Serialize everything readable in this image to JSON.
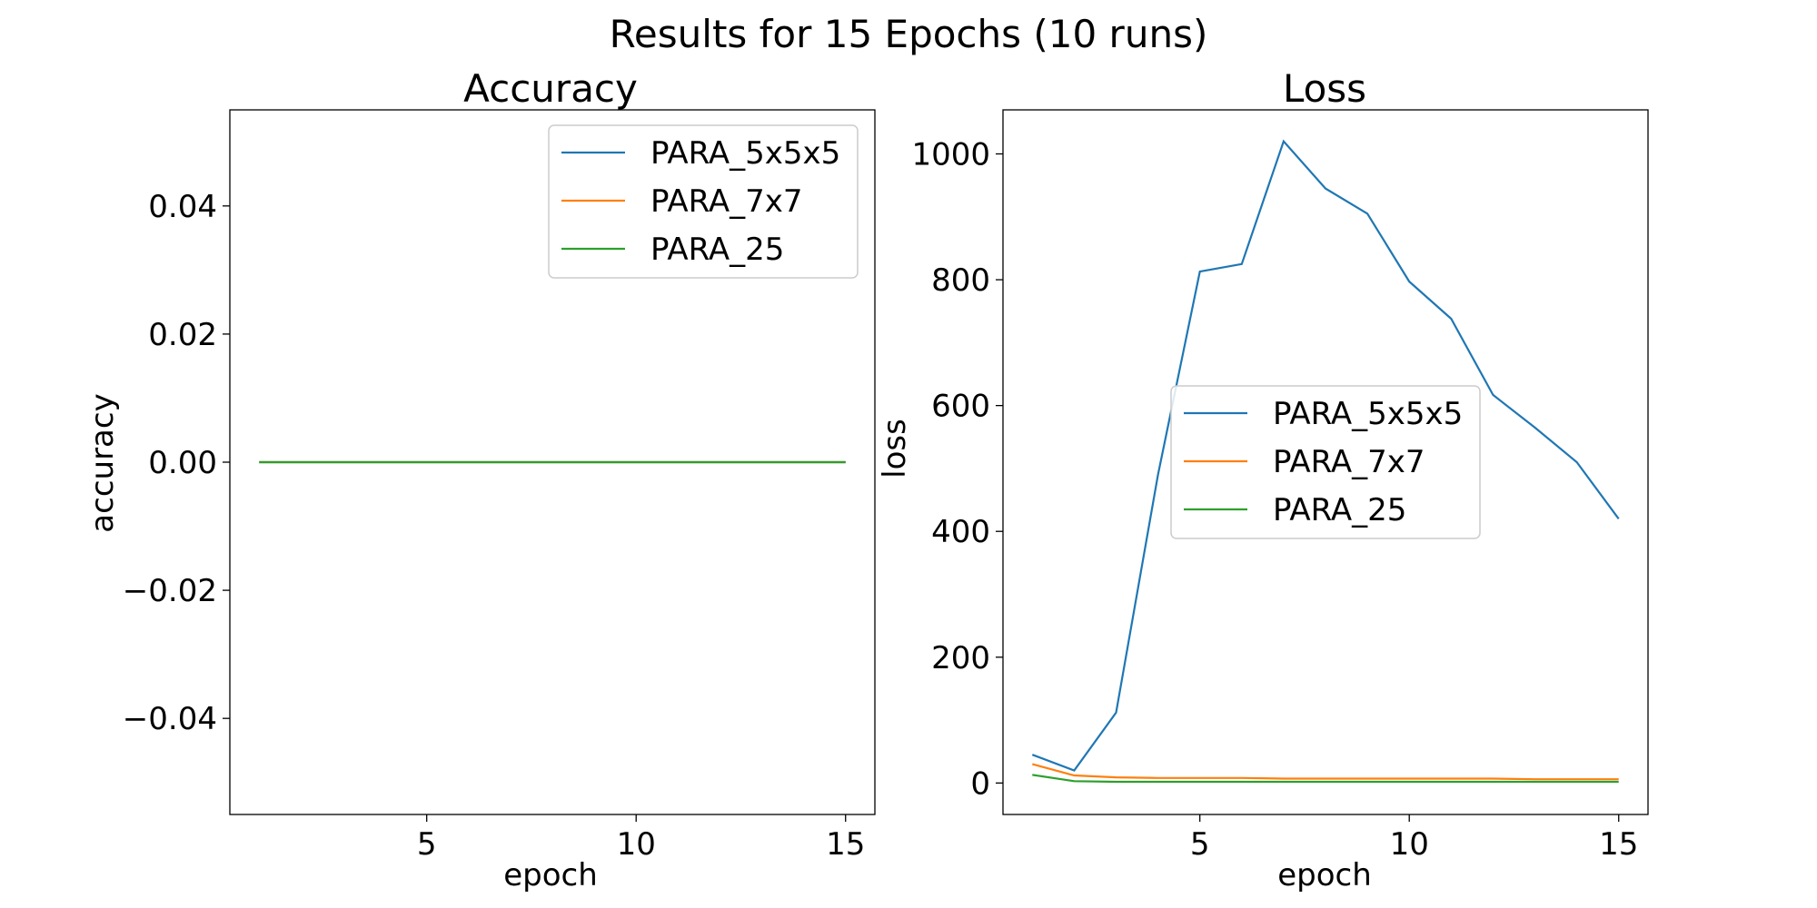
{
  "figure": {
    "title": "Results for 15 Epochs (10 runs)"
  },
  "chart_data": [
    {
      "type": "line",
      "title": "Accuracy",
      "xlabel": "epoch",
      "ylabel": "accuracy",
      "xlim": [
        0.3,
        15.7
      ],
      "ylim": [
        -0.055,
        0.055
      ],
      "xticks": [
        5,
        10,
        15
      ],
      "yticks": [
        -0.04,
        -0.02,
        0.0,
        0.02,
        0.04
      ],
      "yticklabels": [
        "−0.04",
        "−0.02",
        "0.00",
        "0.02",
        "0.04"
      ],
      "grid": false,
      "legend_position": "upper right",
      "x": [
        1,
        2,
        3,
        4,
        5,
        6,
        7,
        8,
        9,
        10,
        11,
        12,
        13,
        14,
        15
      ],
      "series": [
        {
          "name": "PARA_5x5x5",
          "color": "#1f77b4",
          "values": [
            0,
            0,
            0,
            0,
            0,
            0,
            0,
            0,
            0,
            0,
            0,
            0,
            0,
            0,
            0
          ]
        },
        {
          "name": "PARA_7x7",
          "color": "#ff7f0e",
          "values": [
            0,
            0,
            0,
            0,
            0,
            0,
            0,
            0,
            0,
            0,
            0,
            0,
            0,
            0,
            0
          ]
        },
        {
          "name": "PARA_25",
          "color": "#2ca02c",
          "values": [
            0,
            0,
            0,
            0,
            0,
            0,
            0,
            0,
            0,
            0,
            0,
            0,
            0,
            0,
            0
          ]
        }
      ]
    },
    {
      "type": "line",
      "title": "Loss",
      "xlabel": "epoch",
      "ylabel": "loss",
      "xlim": [
        0.3,
        15.7
      ],
      "ylim": [
        -50,
        1070
      ],
      "xticks": [
        5,
        10,
        15
      ],
      "yticks": [
        0,
        200,
        400,
        600,
        800,
        1000
      ],
      "yticklabels": [
        "0",
        "200",
        "400",
        "600",
        "800",
        "1000"
      ],
      "grid": false,
      "legend_position": "center",
      "x": [
        1,
        2,
        3,
        4,
        5,
        6,
        7,
        8,
        9,
        10,
        11,
        12,
        13,
        14,
        15
      ],
      "series": [
        {
          "name": "PARA_5x5x5",
          "color": "#1f77b4",
          "values": [
            45,
            20,
            112,
            490,
            813,
            825,
            1020,
            945,
            905,
            797,
            738,
            617,
            565,
            510,
            420
          ]
        },
        {
          "name": "PARA_7x7",
          "color": "#ff7f0e",
          "values": [
            30,
            12,
            9,
            8,
            8,
            8,
            7,
            7,
            7,
            7,
            7,
            7,
            6,
            6,
            6
          ]
        },
        {
          "name": "PARA_25",
          "color": "#2ca02c",
          "values": [
            13,
            3,
            2,
            2,
            2,
            2,
            2,
            2,
            2,
            2,
            2,
            2,
            2,
            2,
            2
          ]
        }
      ]
    }
  ]
}
